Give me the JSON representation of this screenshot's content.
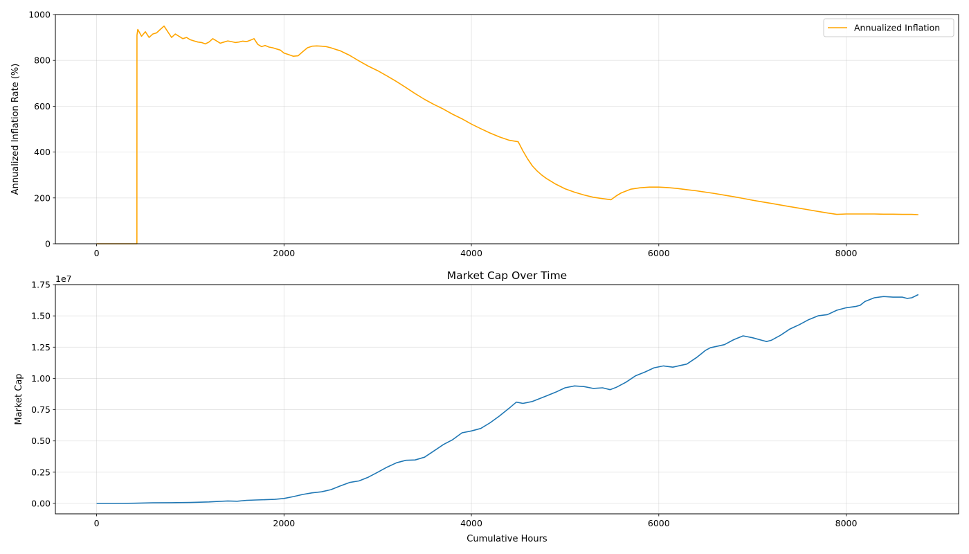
{
  "chart_data": [
    {
      "type": "line",
      "title": "",
      "xlabel": "",
      "ylabel": "Annualized Inflation Rate (%)",
      "xlim": [
        -440,
        9200
      ],
      "ylim": [
        0,
        1000
      ],
      "xticks": [
        0,
        2000,
        4000,
        6000,
        8000
      ],
      "xtick_labels": [
        "0",
        "2000",
        "4000",
        "6000",
        "8000"
      ],
      "yticks": [
        0,
        200,
        400,
        600,
        800,
        1000
      ],
      "ytick_labels": [
        "0",
        "200",
        "400",
        "600",
        "800",
        "1000"
      ],
      "grid": true,
      "legend": "upper-right",
      "series": [
        {
          "name": "Annualized Inflation",
          "color": "#ffa500",
          "x": [
            0,
            430,
            431,
            440,
            480,
            520,
            560,
            600,
            640,
            680,
            720,
            760,
            800,
            840,
            880,
            920,
            960,
            1000,
            1040,
            1080,
            1120,
            1160,
            1200,
            1240,
            1280,
            1320,
            1360,
            1400,
            1440,
            1480,
            1520,
            1560,
            1600,
            1640,
            1680,
            1720,
            1760,
            1800,
            1840,
            1880,
            1920,
            1960,
            2000,
            2050,
            2100,
            2150,
            2200,
            2250,
            2300,
            2350,
            2400,
            2450,
            2500,
            2550,
            2600,
            2650,
            2700,
            2800,
            2900,
            3000,
            3100,
            3200,
            3300,
            3400,
            3500,
            3600,
            3700,
            3800,
            3900,
            4000,
            4100,
            4200,
            4300,
            4400,
            4500,
            4550,
            4600,
            4650,
            4700,
            4750,
            4800,
            4900,
            5000,
            5100,
            5200,
            5300,
            5400,
            5490,
            5550,
            5600,
            5700,
            5800,
            5900,
            6000,
            6100,
            6200,
            6300,
            6400,
            6500,
            6600,
            6700,
            6800,
            6900,
            7000,
            7100,
            7200,
            7300,
            7400,
            7500,
            7600,
            7700,
            7800,
            7900,
            8000,
            8100,
            8200,
            8300,
            8400,
            8500,
            8600,
            8700,
            8770
          ],
          "values": [
            0,
            0,
            910,
            935,
            905,
            925,
            900,
            915,
            920,
            935,
            950,
            925,
            900,
            915,
            905,
            895,
            900,
            890,
            885,
            880,
            878,
            872,
            880,
            895,
            885,
            875,
            880,
            885,
            882,
            878,
            880,
            884,
            882,
            888,
            895,
            870,
            860,
            865,
            858,
            855,
            850,
            845,
            832,
            825,
            818,
            820,
            838,
            855,
            862,
            863,
            862,
            860,
            855,
            848,
            842,
            832,
            822,
            798,
            775,
            755,
            732,
            708,
            682,
            655,
            630,
            608,
            588,
            565,
            545,
            522,
            502,
            483,
            466,
            452,
            445,
            405,
            370,
            340,
            318,
            300,
            285,
            260,
            240,
            225,
            213,
            203,
            197,
            192,
            210,
            222,
            238,
            244,
            247,
            247,
            245,
            241,
            236,
            231,
            225,
            219,
            212,
            205,
            198,
            190,
            183,
            176,
            169,
            162,
            155,
            148,
            141,
            134,
            128,
            130,
            130,
            130,
            130,
            129,
            129,
            128,
            128,
            127
          ]
        }
      ]
    },
    {
      "type": "line",
      "title": "Market Cap Over Time",
      "xlabel": "Cumulative Hours",
      "ylabel": "Market Cap",
      "offset_text": "1e7",
      "xlim": [
        -440,
        9200
      ],
      "ylim": [
        -0.083,
        1.75
      ],
      "xticks": [
        0,
        2000,
        4000,
        6000,
        8000
      ],
      "xtick_labels": [
        "0",
        "2000",
        "4000",
        "6000",
        "8000"
      ],
      "yticks": [
        0,
        0.25,
        0.5,
        0.75,
        1.0,
        1.25,
        1.5,
        1.75
      ],
      "ytick_labels": [
        "0.00",
        "0.25",
        "0.50",
        "0.75",
        "1.00",
        "1.25",
        "1.50",
        "1.75"
      ],
      "grid": true,
      "legend": "none",
      "series": [
        {
          "color": "#1f77b4",
          "x": [
            0,
            200,
            400,
            600,
            800,
            1000,
            1100,
            1200,
            1300,
            1400,
            1500,
            1600,
            1700,
            1800,
            1900,
            2000,
            2100,
            2200,
            2300,
            2400,
            2500,
            2600,
            2700,
            2800,
            2900,
            3000,
            3100,
            3200,
            3300,
            3400,
            3500,
            3600,
            3700,
            3800,
            3900,
            4000,
            4100,
            4200,
            4300,
            4400,
            4480,
            4550,
            4650,
            4800,
            4900,
            5000,
            5100,
            5200,
            5300,
            5400,
            5480,
            5550,
            5650,
            5750,
            5850,
            5950,
            6050,
            6150,
            6300,
            6400,
            6500,
            6550,
            6700,
            6800,
            6900,
            7000,
            7100,
            7150,
            7200,
            7300,
            7400,
            7500,
            7600,
            7700,
            7800,
            7900,
            8000,
            8100,
            8150,
            8200,
            8300,
            8400,
            8500,
            8600,
            8650,
            8700,
            8770
          ],
          "values": [
            0,
            0,
            0.002,
            0.005,
            0.006,
            0.008,
            0.01,
            0.012,
            0.016,
            0.02,
            0.018,
            0.025,
            0.028,
            0.03,
            0.033,
            0.04,
            0.055,
            0.072,
            0.085,
            0.093,
            0.11,
            0.14,
            0.168,
            0.18,
            0.21,
            0.25,
            0.29,
            0.325,
            0.345,
            0.348,
            0.37,
            0.42,
            0.47,
            0.51,
            0.565,
            0.58,
            0.6,
            0.645,
            0.7,
            0.76,
            0.81,
            0.8,
            0.815,
            0.86,
            0.89,
            0.925,
            0.94,
            0.935,
            0.92,
            0.925,
            0.91,
            0.93,
            0.97,
            1.02,
            1.05,
            1.085,
            1.1,
            1.09,
            1.115,
            1.165,
            1.225,
            1.245,
            1.27,
            1.31,
            1.34,
            1.325,
            1.305,
            1.295,
            1.305,
            1.345,
            1.395,
            1.43,
            1.47,
            1.5,
            1.51,
            1.545,
            1.565,
            1.575,
            1.585,
            1.615,
            1.645,
            1.655,
            1.65,
            1.65,
            1.64,
            1.645,
            1.67
          ]
        }
      ]
    }
  ]
}
